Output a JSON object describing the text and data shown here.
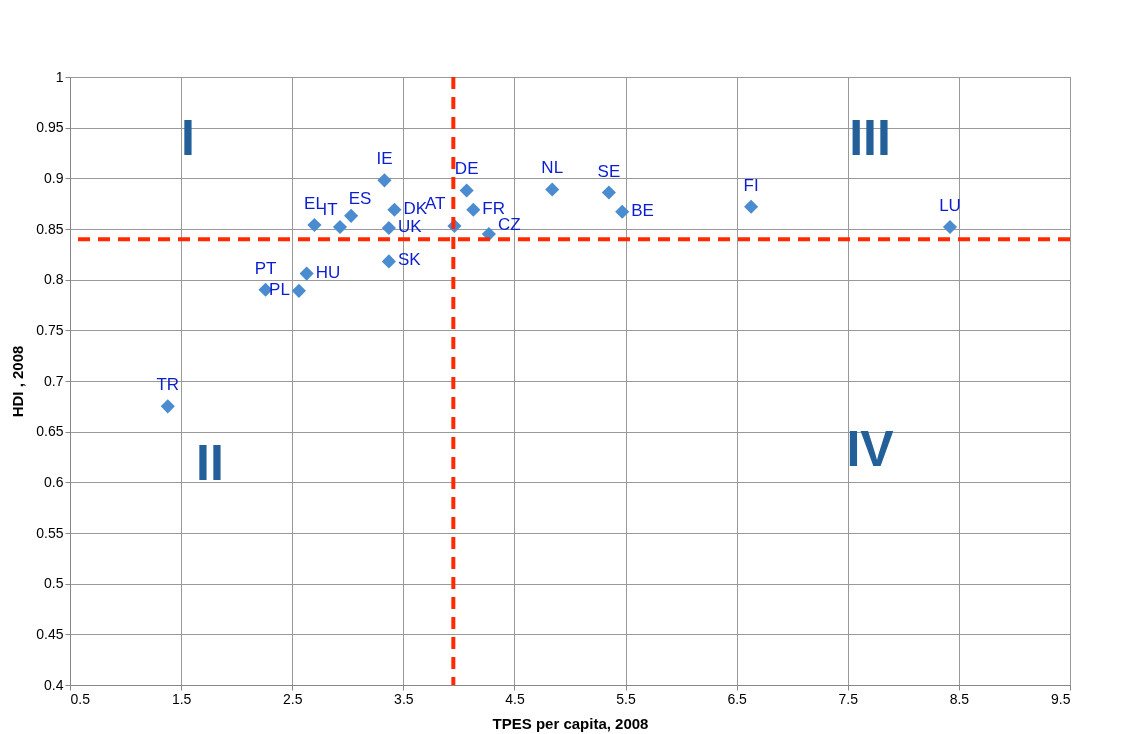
{
  "chart_data": {
    "type": "scatter",
    "xlabel": "TPES per capita, 2008",
    "ylabel": "HDI , 2008",
    "xlim": [
      0.5,
      9.5
    ],
    "xticks": [
      0.5,
      1.5,
      2.5,
      3.5,
      4.5,
      5.5,
      6.5,
      7.5,
      8.5,
      9.5
    ],
    "ylim": [
      0.4,
      1
    ],
    "yticks": [
      0.4,
      0.45,
      0.5,
      0.55,
      0.6,
      0.65,
      0.7,
      0.75,
      0.8,
      0.85,
      0.9,
      0.95,
      1
    ],
    "grid": true,
    "marker": "diamond",
    "series": [
      {
        "name": "TR",
        "color": "#4a8ccf",
        "x": [
          1.38
        ],
        "values": [
          0.675
        ]
      },
      {
        "name": "PT",
        "color": "#4a8ccf",
        "x": [
          2.26
        ],
        "values": [
          0.79
        ]
      },
      {
        "name": "PL",
        "color": "#4a8ccf",
        "x": [
          2.56
        ],
        "values": [
          0.789
        ]
      },
      {
        "name": "HU",
        "color": "#4a8ccf",
        "x": [
          2.63
        ],
        "values": [
          0.806
        ]
      },
      {
        "name": "EL",
        "color": "#4a8ccf",
        "x": [
          2.7
        ],
        "values": [
          0.854
        ]
      },
      {
        "name": "IT",
        "color": "#4a8ccf",
        "x": [
          2.93
        ],
        "values": [
          0.852
        ]
      },
      {
        "name": "ES",
        "color": "#4a8ccf",
        "x": [
          3.03
        ],
        "values": [
          0.863
        ]
      },
      {
        "name": "IE",
        "color": "#4a8ccf",
        "x": [
          3.33
        ],
        "values": [
          0.898
        ]
      },
      {
        "name": "DK",
        "color": "#4a8ccf",
        "x": [
          3.42
        ],
        "values": [
          0.869
        ]
      },
      {
        "name": "UK",
        "color": "#4a8ccf",
        "x": [
          3.37
        ],
        "values": [
          0.851
        ]
      },
      {
        "name": "SK",
        "color": "#4a8ccf",
        "x": [
          3.37
        ],
        "values": [
          0.818
        ]
      },
      {
        "name": "AT",
        "color": "#4a8ccf",
        "x": [
          3.96
        ],
        "values": [
          0.853
        ]
      },
      {
        "name": "DE",
        "color": "#4a8ccf",
        "x": [
          4.07
        ],
        "values": [
          0.888
        ]
      },
      {
        "name": "FR",
        "color": "#4a8ccf",
        "x": [
          4.13
        ],
        "values": [
          0.869
        ]
      },
      {
        "name": "CZ",
        "color": "#4a8ccf",
        "x": [
          4.27
        ],
        "values": [
          0.845
        ]
      },
      {
        "name": "NL",
        "color": "#4a8ccf",
        "x": [
          4.84
        ],
        "values": [
          0.889
        ]
      },
      {
        "name": "SE",
        "color": "#4a8ccf",
        "x": [
          5.35
        ],
        "values": [
          0.886
        ]
      },
      {
        "name": "BE",
        "color": "#4a8ccf",
        "x": [
          5.47
        ],
        "values": [
          0.867
        ]
      },
      {
        "name": "FI",
        "color": "#4a8ccf",
        "x": [
          6.63
        ],
        "values": [
          0.872
        ]
      },
      {
        "name": "LU",
        "color": "#4a8ccf",
        "x": [
          8.42
        ],
        "values": [
          0.852
        ]
      }
    ],
    "ref_lines": [
      {
        "axis": "x",
        "value": 3.95,
        "color": "#ff2a00",
        "line_style": "dashed"
      },
      {
        "axis": "y",
        "value": 0.84,
        "color": "#ff2a00",
        "line_style": "dashed"
      }
    ],
    "annotations": [
      "I",
      "II",
      "III",
      "IV"
    ]
  }
}
